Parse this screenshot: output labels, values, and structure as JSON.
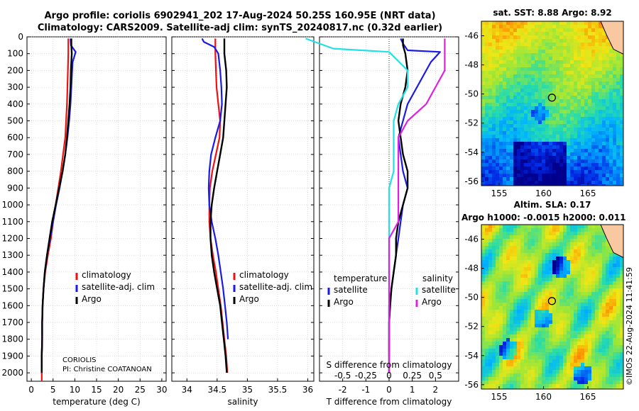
{
  "header": {
    "line1": "Argo profile: coriolis 6902941_202 17-Aug-2024 50.25S 160.95E (NRT data)",
    "line2": "Climatology: CARS2009. Satellite-adj clim: synTS_20240817.nc (0.32d earlier)"
  },
  "credits": {
    "institution": "CORIOLIS",
    "pi": "PI: Christine COATANOAN"
  },
  "stamp": "©IMOS 22-Aug-2024 11:41:59",
  "colors": {
    "climatology": "#ee1111",
    "satellite": "#1a1ae6",
    "argo": "#000000",
    "sat_s": "#22e0e6",
    "argo_s": "#e020e0"
  },
  "chart_data": [
    {
      "id": "temperature",
      "type": "line",
      "xlabel": "temperature (deg C)",
      "ylabel": "",
      "xlim": [
        -1,
        31
      ],
      "ylim": [
        0,
        2050
      ],
      "xticks": [
        0,
        5,
        10,
        15,
        20,
        25,
        30
      ],
      "yticks": [
        0,
        100,
        200,
        300,
        400,
        500,
        600,
        700,
        800,
        900,
        1000,
        1100,
        1200,
        1300,
        1400,
        1500,
        1600,
        1700,
        1800,
        1900,
        2000
      ],
      "legend": [
        "climatology",
        "satellite-adj. clim",
        "Argo"
      ],
      "series": [
        {
          "name": "climatology",
          "color": "#ee1111",
          "x": [
            8.5,
            8.5,
            8.5,
            8.4,
            8.3,
            8.2,
            8.0,
            7.8,
            7.3,
            6.8,
            6.2,
            5.6,
            5.0,
            4.5,
            3.8,
            3.2,
            2.8,
            2.6,
            2.5,
            2.5,
            2.4,
            2.4,
            2.4
          ],
          "y": [
            10,
            50,
            100,
            200,
            300,
            400,
            500,
            600,
            700,
            800,
            900,
            1000,
            1100,
            1200,
            1300,
            1400,
            1500,
            1600,
            1700,
            1800,
            1900,
            2000,
            2050
          ]
        },
        {
          "name": "satellite-adj. clim",
          "color": "#1a1ae6",
          "x": [
            9.0,
            9.1,
            10.2,
            9.5,
            9.2,
            9.0,
            8.7,
            8.3,
            7.8,
            7.2,
            6.5,
            5.7,
            5.0,
            4.3,
            3.6,
            3.1,
            2.8,
            2.6,
            2.5,
            2.5,
            2.4,
            2.4
          ],
          "y": [
            10,
            50,
            90,
            150,
            300,
            400,
            500,
            600,
            700,
            800,
            900,
            1000,
            1100,
            1200,
            1300,
            1400,
            1500,
            1600,
            1700,
            1800,
            1900,
            2000
          ]
        },
        {
          "name": "Argo",
          "color": "#000000",
          "x": [
            9.2,
            9.2,
            9.3,
            9.1,
            9.0,
            8.8,
            8.5,
            8.2,
            7.8,
            7.2,
            6.4,
            5.6,
            4.8,
            4.2,
            3.6,
            3.1,
            2.8,
            2.6,
            2.5,
            2.5,
            2.4,
            2.4
          ],
          "y": [
            10,
            50,
            100,
            200,
            300,
            400,
            500,
            600,
            700,
            800,
            900,
            1000,
            1100,
            1200,
            1300,
            1400,
            1500,
            1600,
            1700,
            1800,
            1900,
            2000
          ]
        }
      ]
    },
    {
      "id": "salinity",
      "type": "line",
      "xlabel": "salinity",
      "ylabel": "",
      "xlim": [
        33.75,
        36.1
      ],
      "ylim": [
        0,
        2050
      ],
      "xticks": [
        34,
        34.5,
        35,
        35.5,
        36
      ],
      "xticklabels": [
        "34",
        "34.5",
        "35",
        "35.5",
        "36"
      ],
      "legend": [
        "climatology",
        "satellite-adj. clim",
        "Argo"
      ],
      "series": [
        {
          "name": "climatology",
          "color": "#ee1111",
          "x": [
            34.47,
            34.47,
            34.48,
            34.49,
            34.52,
            34.55,
            34.54,
            34.48,
            34.42,
            34.38,
            34.37,
            34.37,
            34.39,
            34.43,
            34.48,
            34.52,
            34.56,
            34.59,
            34.62,
            34.65,
            34.67
          ],
          "y": [
            10,
            100,
            200,
            300,
            400,
            500,
            600,
            700,
            800,
            900,
            1000,
            1100,
            1200,
            1300,
            1400,
            1500,
            1600,
            1700,
            1800,
            1900,
            2000
          ]
        },
        {
          "name": "satellite-adj. clim",
          "color": "#1a1ae6",
          "x": [
            34.25,
            34.28,
            34.45,
            34.52,
            34.55,
            34.57,
            34.58,
            34.55,
            34.47,
            34.4,
            34.37,
            34.36,
            34.37,
            34.41,
            34.47,
            34.52,
            34.56,
            34.6,
            34.63,
            34.66,
            34.68
          ],
          "y": [
            10,
            30,
            60,
            100,
            200,
            300,
            400,
            500,
            600,
            700,
            800,
            900,
            1000,
            1100,
            1200,
            1300,
            1400,
            1500,
            1600,
            1700,
            1800
          ]
        },
        {
          "name": "Argo",
          "color": "#000000",
          "x": [
            34.62,
            34.62,
            34.65,
            34.66,
            34.64,
            34.62,
            34.6,
            34.55,
            34.5,
            34.45,
            34.41,
            34.39,
            34.39,
            34.41,
            34.45,
            34.5,
            34.55,
            34.58,
            34.61,
            34.64,
            34.66
          ],
          "y": [
            10,
            100,
            200,
            300,
            400,
            500,
            600,
            700,
            800,
            900,
            1000,
            1100,
            1200,
            1300,
            1400,
            1500,
            1600,
            1700,
            1800,
            1900,
            2000
          ]
        }
      ]
    },
    {
      "id": "difference",
      "type": "line",
      "xlabel": "T difference from climatology",
      "top_axis_label": "S difference from climatology",
      "xlim": [
        -3,
        3
      ],
      "ylim": [
        0,
        2050
      ],
      "xticks": [
        -2,
        -1,
        0,
        1,
        2
      ],
      "xticklabels": [
        "-2",
        "-1",
        "0",
        "1",
        "2"
      ],
      "top_xticklabels": [
        "-0.5",
        "-0.25",
        "0",
        "0.25",
        "0.5"
      ],
      "legend_temperature": {
        "title": "temperature",
        "items": [
          "satellite",
          "Argo"
        ]
      },
      "legend_salinity": {
        "title": "salinity",
        "items": [
          "satellite",
          "Argo"
        ]
      },
      "series": [
        {
          "name": "temperature satellite",
          "color": "#1a1ae6",
          "x": [
            0.5,
            0.6,
            0.8,
            2.2,
            1.8,
            1.2,
            0.8,
            0.6,
            0.4,
            0.5,
            0.6,
            0.8,
            0.6,
            0.5,
            0.4,
            0.3,
            0.2,
            0.1,
            0.0,
            0.0,
            0.0,
            0.0
          ],
          "y": [
            10,
            40,
            80,
            90,
            150,
            300,
            400,
            500,
            600,
            700,
            800,
            900,
            1000,
            1100,
            1200,
            1300,
            1400,
            1500,
            1600,
            1700,
            1800,
            1900
          ]
        },
        {
          "name": "temperature Argo",
          "color": "#000000",
          "x": [
            0.6,
            0.6,
            0.7,
            0.8,
            0.7,
            0.5,
            0.4,
            0.5,
            0.6,
            0.8,
            0.8,
            0.6,
            0.4,
            0.3,
            0.3,
            0.2,
            0.1,
            0.05,
            0.0,
            0.0,
            0.0,
            0.0
          ],
          "y": [
            10,
            50,
            100,
            200,
            300,
            400,
            500,
            600,
            700,
            800,
            900,
            1000,
            1100,
            1200,
            1300,
            1400,
            1500,
            1600,
            1700,
            1800,
            1900,
            2000
          ]
        },
        {
          "name": "salinity satellite",
          "color": "#22e0e6",
          "x": [
            -0.9,
            -0.6,
            0.0,
            0.2,
            0.2,
            0.1,
            0.05,
            0.05,
            0.05,
            0.05,
            0.0,
            0.0,
            0.0,
            0.0,
            0.0,
            0.0,
            0.0,
            0.0,
            0.0,
            0.0
          ],
          "y": [
            10,
            70,
            90,
            200,
            300,
            400,
            500,
            600,
            700,
            800,
            900,
            1000,
            1100,
            1200,
            1300,
            1400,
            1500,
            1600,
            1700,
            1800
          ]
        },
        {
          "name": "salinity Argo",
          "color": "#e020e0",
          "x": [
            0.6,
            0.6,
            0.6,
            0.5,
            0.4,
            0.2,
            0.1,
            0.1,
            0.1,
            0.1,
            0.1,
            0.1,
            0.0,
            0.0,
            0.0,
            0.0,
            0.0,
            0.0,
            0.0,
            0.0,
            0.0
          ],
          "y": [
            10,
            100,
            200,
            300,
            400,
            500,
            600,
            700,
            800,
            900,
            1000,
            1100,
            1200,
            1300,
            1400,
            1500,
            1600,
            1700,
            1800,
            1900,
            2000
          ]
        }
      ]
    },
    {
      "id": "sst_map",
      "type": "heatmap",
      "title": "sat. SST: 8.88 Argo: 8.92",
      "xticks": [
        155,
        160,
        165
      ],
      "yticks": [
        -46,
        -48,
        -50,
        -52,
        -54,
        -56
      ],
      "xlim": [
        153,
        169
      ],
      "ylim": [
        -56.3,
        -45
      ],
      "marker": {
        "lon": 160.95,
        "lat": -50.25
      }
    },
    {
      "id": "sla_map",
      "type": "heatmap",
      "title": "Altim. SLA: 0.17",
      "subtitle": "Argo h1000: -0.0015 h2000: 0.011",
      "xticks": [
        155,
        160,
        165
      ],
      "yticks": [
        -46,
        -48,
        -50,
        -52,
        -54,
        -56
      ],
      "xlim": [
        153,
        169
      ],
      "ylim": [
        -56.3,
        -45
      ],
      "marker": {
        "lon": 160.95,
        "lat": -50.25
      }
    }
  ]
}
